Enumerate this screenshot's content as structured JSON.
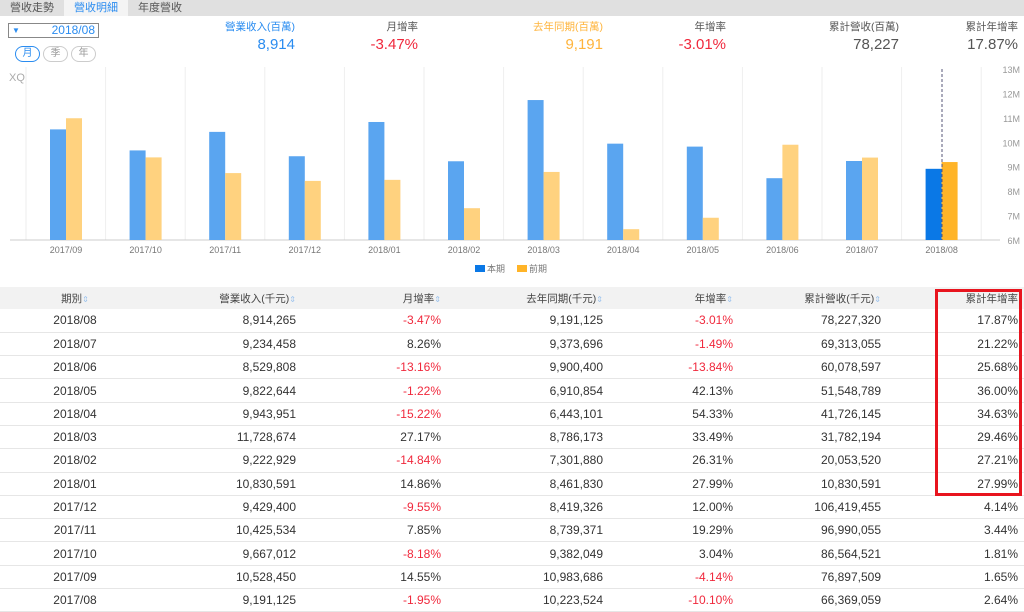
{
  "tabs": [
    "營收走勢",
    "營收明細",
    "年度營收"
  ],
  "date_select": "2018/08",
  "periods": [
    "月",
    "季",
    "年"
  ],
  "stats": [
    {
      "label": "營業收入(百萬)",
      "value": "8,914",
      "color": "#2a8cf0",
      "lcolor": "#2a8cf0"
    },
    {
      "label": "月增率",
      "value": "-3.47%",
      "color": "#f0283c",
      "lcolor": "#555"
    },
    {
      "label": "去年同期(百萬)",
      "value": "9,191",
      "color": "#ffb43c",
      "lcolor": "#ffb43c"
    },
    {
      "label": "年增率",
      "value": "-3.01%",
      "color": "#f0283c",
      "lcolor": "#555"
    },
    {
      "label": "累計營收(百萬)",
      "value": "78,227",
      "color": "#555",
      "lcolor": "#555"
    },
    {
      "label": "累計年增率",
      "value": "17.87%",
      "color": "#555",
      "lcolor": "#555"
    }
  ],
  "chart_data": {
    "type": "bar",
    "watermark": "XQ",
    "categories": [
      "2017/09",
      "2017/10",
      "2017/11",
      "2017/12",
      "2018/01",
      "2018/02",
      "2018/03",
      "2018/04",
      "2018/05",
      "2018/06",
      "2018/07",
      "2018/08"
    ],
    "series": [
      {
        "name": "本期",
        "color": "#5aa5f0",
        "values": [
          10.528,
          9.667,
          10.426,
          9.429,
          10.831,
          9.223,
          11.729,
          9.944,
          9.823,
          8.53,
          9.234,
          8.914
        ]
      },
      {
        "name": "前期",
        "color": "#ffd27f",
        "values": [
          10.984,
          9.382,
          8.739,
          8.419,
          8.462,
          7.302,
          8.786,
          6.443,
          6.911,
          9.9,
          9.374,
          9.191
        ]
      }
    ],
    "yticks": [
      "13M",
      "12M",
      "11M",
      "10M",
      "9M",
      "8M",
      "7M",
      "6M"
    ],
    "ylim": [
      6,
      13
    ],
    "legend": "bottom-center"
  },
  "table": {
    "headers": [
      "期別",
      "營業收入(千元)",
      "月增率",
      "去年同期(千元)",
      "年增率",
      "累計營收(千元)",
      "累計年增率"
    ],
    "rows": [
      [
        "2018/08",
        "8,914,265",
        "-3.47%",
        "9,191,125",
        "-3.01%",
        "78,227,320",
        "17.87%"
      ],
      [
        "2018/07",
        "9,234,458",
        "8.26%",
        "9,373,696",
        "-1.49%",
        "69,313,055",
        "21.22%"
      ],
      [
        "2018/06",
        "8,529,808",
        "-13.16%",
        "9,900,400",
        "-13.84%",
        "60,078,597",
        "25.68%"
      ],
      [
        "2018/05",
        "9,822,644",
        "-1.22%",
        "6,910,854",
        "42.13%",
        "51,548,789",
        "36.00%"
      ],
      [
        "2018/04",
        "9,943,951",
        "-15.22%",
        "6,443,101",
        "54.33%",
        "41,726,145",
        "34.63%"
      ],
      [
        "2018/03",
        "11,728,674",
        "27.17%",
        "8,786,173",
        "33.49%",
        "31,782,194",
        "29.46%"
      ],
      [
        "2018/02",
        "9,222,929",
        "-14.84%",
        "7,301,880",
        "26.31%",
        "20,053,520",
        "27.21%"
      ],
      [
        "2018/01",
        "10,830,591",
        "14.86%",
        "8,461,830",
        "27.99%",
        "10,830,591",
        "27.99%"
      ],
      [
        "2017/12",
        "9,429,400",
        "-9.55%",
        "8,419,326",
        "12.00%",
        "106,419,455",
        "4.14%"
      ],
      [
        "2017/11",
        "10,425,534",
        "7.85%",
        "8,739,371",
        "19.29%",
        "96,990,055",
        "3.44%"
      ],
      [
        "2017/10",
        "9,667,012",
        "-8.18%",
        "9,382,049",
        "3.04%",
        "86,564,521",
        "1.81%"
      ],
      [
        "2017/09",
        "10,528,450",
        "14.55%",
        "10,983,686",
        "-4.14%",
        "76,897,509",
        "1.65%"
      ],
      [
        "2017/08",
        "9,191,125",
        "-1.95%",
        "10,223,524",
        "-10.10%",
        "66,369,059",
        "2.64%"
      ]
    ]
  }
}
